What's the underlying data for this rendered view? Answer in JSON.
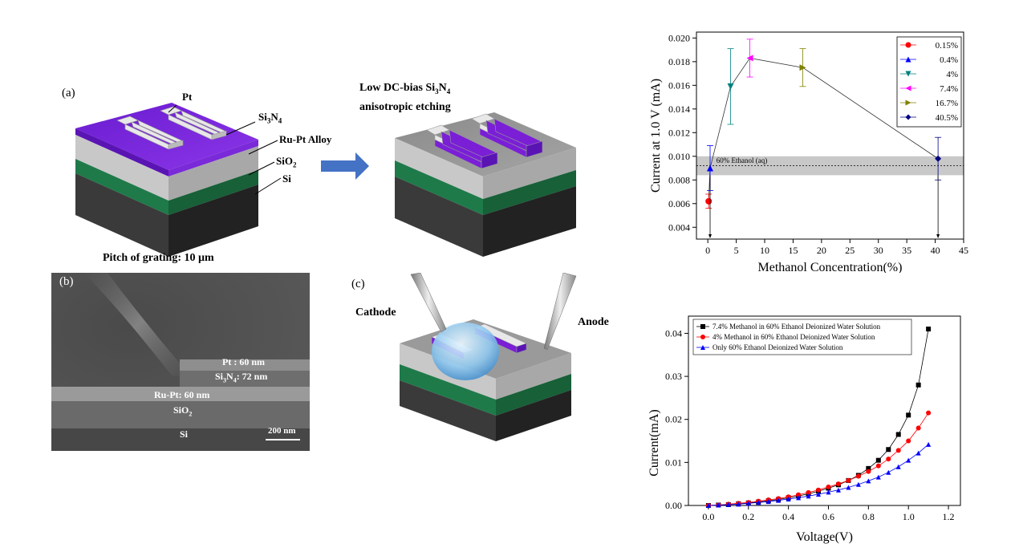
{
  "figure": {
    "panel_a": {
      "tag": "(a)",
      "layers": {
        "pt": "Pt",
        "si3n4_main": "Si",
        "si3n4_sub1": "3",
        "si3n4_mid": "N",
        "si3n4_sub2": "4",
        "rupt": "Ru-Pt Alloy",
        "sio2_main": "SiO",
        "sio2_sub": "2",
        "si": "Si"
      },
      "pitch_caption": "Pitch of grating: 10 µm",
      "etch_line1": "Low DC-bias Si",
      "etch_sub1": "3",
      "etch_mid": "N",
      "etch_sub2": "4",
      "etch_line2": "anisotropic etching"
    },
    "panel_b": {
      "tag": "(b)",
      "pt": "Pt : 60 nm",
      "si3n4_a": "Si",
      "si3n4_s1": "3",
      "si3n4_b": "N",
      "si3n4_s2": "4",
      "si3n4_c": ": 72 nm",
      "rupt": "Ru-Pt: 60 nm",
      "sio2": "SiO",
      "sio2_sub": "2",
      "si": "Si",
      "scale": "200 nm"
    },
    "panel_c": {
      "tag": "(c)",
      "cathode": "Cathode",
      "anode": "Anode"
    },
    "colors": {
      "si3n4": "#7a1fd6",
      "rupt": "#c4c4c4",
      "sio2": "#1f7a4a",
      "si": "#2b2b2b",
      "arrow": "#4472c4"
    }
  },
  "chart_data": [
    {
      "type": "scatter",
      "xlabel": "Methanol Concentration(%)",
      "ylabel": "Current at 1.0 V (mA)",
      "xlim": [
        -2,
        45
      ],
      "ylim": [
        0.003,
        0.0205
      ],
      "xticks": [
        "0",
        "5",
        "10",
        "15",
        "20",
        "25",
        "30",
        "35",
        "40",
        "45"
      ],
      "yticks": [
        "0.004",
        "0.006",
        "0.008",
        "0.010",
        "0.012",
        "0.014",
        "0.016",
        "0.018",
        "0.020"
      ],
      "band": {
        "label": "60% Ethanol (aq)",
        "center": 0.0092,
        "low": 0.0084,
        "high": 0.01
      },
      "series": [
        {
          "name": "0.15%",
          "x": 0.15,
          "y": 0.0062,
          "err": 0.0006,
          "color": "#ff0000",
          "marker": "circle"
        },
        {
          "name": "0.4%",
          "x": 0.4,
          "y": 0.009,
          "err": 0.0019,
          "color": "#0000ff",
          "marker": "triangle-up"
        },
        {
          "name": "4%",
          "x": 4,
          "y": 0.0159,
          "err": 0.0032,
          "color": "#008080",
          "marker": "triangle-down"
        },
        {
          "name": "7.4%",
          "x": 7.4,
          "y": 0.0183,
          "err": 0.0016,
          "color": "#ff00ff",
          "marker": "triangle-left"
        },
        {
          "name": "16.7%",
          "x": 16.7,
          "y": 0.0175,
          "err": 0.0016,
          "color": "#808000",
          "marker": "triangle-right"
        },
        {
          "name": "40.5%",
          "x": 40.5,
          "y": 0.0098,
          "err": 0.0018,
          "color": "#000080",
          "marker": "diamond"
        }
      ],
      "legend": "top-right"
    },
    {
      "type": "line",
      "xlabel": "Voltage(V)",
      "ylabel": "Current(mA)",
      "xlim": [
        -0.1,
        1.26
      ],
      "ylim": [
        0,
        0.044
      ],
      "xticks": [
        "0.0",
        "0.2",
        "0.4",
        "0.6",
        "0.8",
        "1.0",
        "1.2"
      ],
      "yticks": [
        "0.00",
        "0.01",
        "0.02",
        "0.03",
        "0.04"
      ],
      "series": [
        {
          "name": "7.4% Methanol in 60% Ethanol Deionized Water Solution",
          "color": "#000000",
          "marker": "square",
          "x": [
            0,
            0.05,
            0.1,
            0.15,
            0.2,
            0.25,
            0.3,
            0.35,
            0.4,
            0.45,
            0.5,
            0.55,
            0.6,
            0.65,
            0.7,
            0.75,
            0.8,
            0.85,
            0.9,
            0.95,
            1.0,
            1.05,
            1.1
          ],
          "y": [
            0,
            0.0001,
            0.0002,
            0.0004,
            0.0006,
            0.0008,
            0.0011,
            0.0014,
            0.0018,
            0.0022,
            0.0027,
            0.0033,
            0.004,
            0.0048,
            0.0058,
            0.007,
            0.0086,
            0.0105,
            0.013,
            0.0165,
            0.021,
            0.028,
            0.041
          ]
        },
        {
          "name": "4% Methanol in 60% Ethanol Deionized Water Solution",
          "color": "#ff0000",
          "marker": "circle",
          "x": [
            0,
            0.05,
            0.1,
            0.15,
            0.2,
            0.25,
            0.3,
            0.35,
            0.4,
            0.45,
            0.5,
            0.55,
            0.6,
            0.65,
            0.7,
            0.75,
            0.8,
            0.85,
            0.9,
            0.95,
            1.0,
            1.05,
            1.1
          ],
          "y": [
            0,
            0.0001,
            0.0003,
            0.0005,
            0.0007,
            0.001,
            0.0013,
            0.0016,
            0.002,
            0.0025,
            0.003,
            0.0036,
            0.0043,
            0.005,
            0.0058,
            0.0068,
            0.0079,
            0.0092,
            0.0108,
            0.0128,
            0.015,
            0.018,
            0.0215
          ]
        },
        {
          "name": "Only 60% Ethanol Deionized Water Solution",
          "color": "#0000ff",
          "marker": "triangle-up",
          "x": [
            0,
            0.05,
            0.1,
            0.15,
            0.2,
            0.25,
            0.3,
            0.35,
            0.4,
            0.45,
            0.5,
            0.55,
            0.6,
            0.65,
            0.7,
            0.75,
            0.8,
            0.85,
            0.9,
            0.95,
            1.0,
            1.05,
            1.1
          ],
          "y": [
            0,
            0.0001,
            0.0002,
            0.0003,
            0.0005,
            0.0007,
            0.0009,
            0.0012,
            0.0015,
            0.0018,
            0.0022,
            0.0026,
            0.0031,
            0.0036,
            0.0042,
            0.0049,
            0.0057,
            0.0066,
            0.0077,
            0.009,
            0.0105,
            0.0122,
            0.0142
          ]
        }
      ],
      "legend": "top-left"
    }
  ]
}
